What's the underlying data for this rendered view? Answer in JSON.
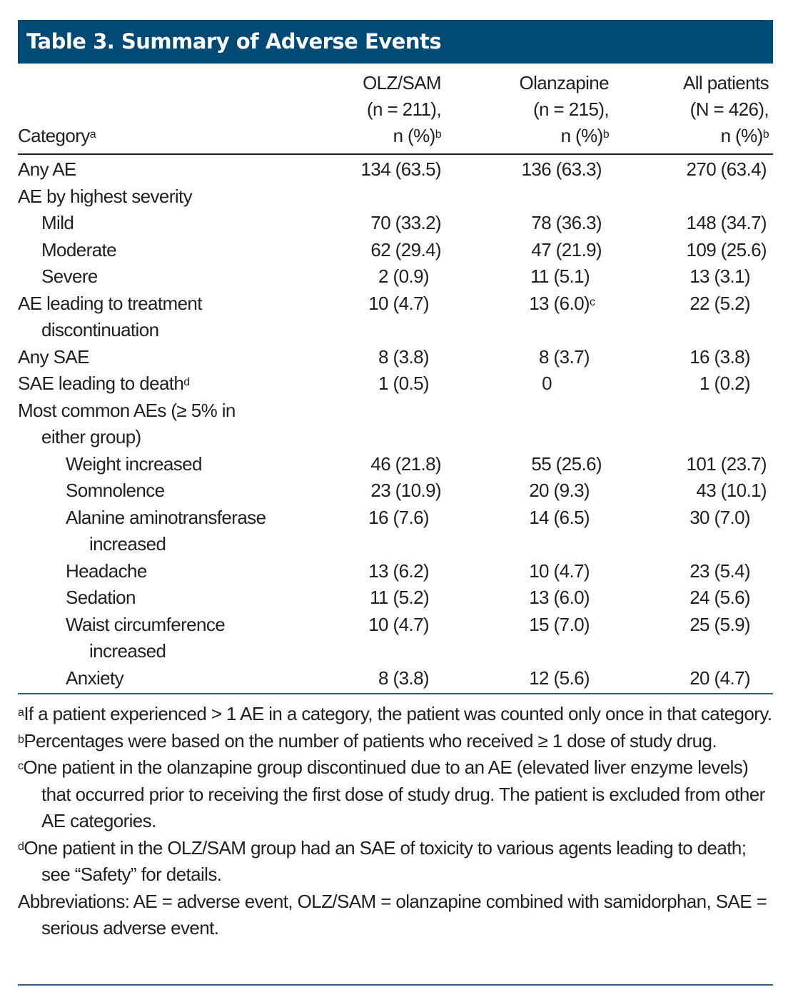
{
  "title": "Table 3. Summary of Adverse Events",
  "header": {
    "category": "Category",
    "category_sup": "a",
    "columns": [
      {
        "line1": "OLZ/SAM",
        "line2": "(n = 211),",
        "line3": "n (%)",
        "sup": "b"
      },
      {
        "line1": "Olanzapine",
        "line2": "(n = 215),",
        "line3": "n (%)",
        "sup": "b"
      },
      {
        "line1": "All patients",
        "line2": "(N = 426),",
        "line3": "n (%)",
        "sup": "b"
      }
    ]
  },
  "rows": [
    {
      "label": "Any AE",
      "v": [
        "134 (63.5)",
        "136 (63.3)",
        "270 (63.4)"
      ]
    },
    {
      "label": "AE by highest severity",
      "v": [
        "",
        "",
        ""
      ]
    },
    {
      "label": "Mild",
      "v": [
        "70 (33.2)",
        "78 (36.3)",
        "148 (34.7)"
      ]
    },
    {
      "label": "Moderate",
      "v": [
        "62 (29.4)",
        "47 (21.9)",
        "109 (25.6)"
      ]
    },
    {
      "label": "Severe",
      "v": [
        "2 (0.9)",
        "11 (5.1)",
        "13 (3.1)"
      ]
    },
    {
      "label": "AE leading to treatment",
      "label2": "discontinuation",
      "v": [
        "10 (4.7)",
        "13 (6.0)",
        "22 (5.2)"
      ],
      "v2_sup": "c"
    },
    {
      "label": "Any SAE",
      "v": [
        "8 (3.8)",
        "8 (3.7)",
        "16 (3.8)"
      ]
    },
    {
      "label": "SAE leading to death",
      "label_sup": "d",
      "v": [
        "1 (0.5)",
        "0",
        "1 (0.2)"
      ]
    },
    {
      "label": "Most common AEs (≥ 5% in",
      "label2": "either group)",
      "v": [
        "",
        "",
        ""
      ]
    },
    {
      "label": "Weight increased",
      "v": [
        "46 (21.8)",
        "55 (25.6)",
        "101 (23.7)"
      ]
    },
    {
      "label": "Somnolence",
      "v": [
        "23 (10.9)",
        "20 (9.3)",
        "43 (10.1)"
      ]
    },
    {
      "label": "Alanine aminotransferase",
      "label2": "increased",
      "v": [
        "16 (7.6)",
        "14 (6.5)",
        "30 (7.0)"
      ]
    },
    {
      "label": "Headache",
      "v": [
        "13 (6.2)",
        "10 (4.7)",
        "23 (5.4)"
      ]
    },
    {
      "label": "Sedation",
      "v": [
        "11 (5.2)",
        "13 (6.0)",
        "24 (5.6)"
      ]
    },
    {
      "label": "Waist circumference",
      "label2": "increased",
      "v": [
        "10 (4.7)",
        "15 (7.0)",
        "25 (5.9)"
      ]
    },
    {
      "label": "Anxiety",
      "v": [
        "8 (3.8)",
        "12 (5.6)",
        "20 (4.7)"
      ]
    }
  ],
  "footnotes": [
    {
      "mark": "a",
      "text": "If a patient experienced > 1 AE in a category, the patient was counted only once in that category."
    },
    {
      "mark": "b",
      "text": "Percentages were based on the number of patients who received ≥ 1 dose of study drug."
    },
    {
      "mark": "c",
      "text": "One patient in the olanzapine group discontinued due to an AE (elevated liver enzyme levels) that occurred prior to receiving the first dose of study drug. The patient is excluded from other AE categories."
    },
    {
      "mark": "d",
      "text": "One patient in the OLZ/SAM group had an SAE of toxicity to various agents leading to death; see “Safety” for details."
    },
    {
      "mark": "",
      "text": "Abbreviations: AE = adverse event, OLZ/SAM = olanzapine combined with samidorphan, SAE = serious adverse event."
    }
  ],
  "colors": {
    "title_bg": "#004a76",
    "rule": "#2b5f8a",
    "text": "#231f20"
  }
}
